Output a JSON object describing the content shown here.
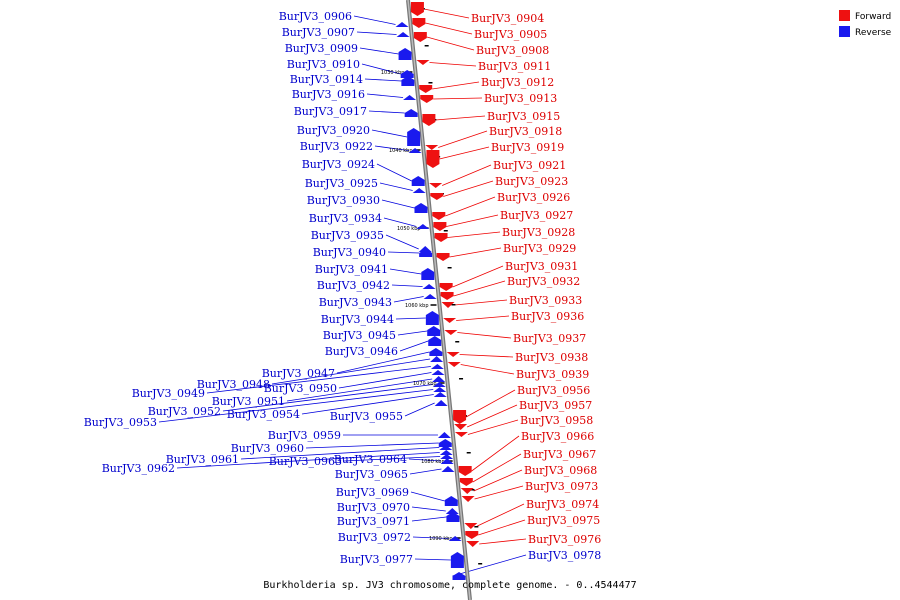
{
  "legend": {
    "forward": {
      "label": "Forward",
      "color": "#ee1111"
    },
    "reverse": {
      "label": "Reverse",
      "color": "#1a1aee"
    }
  },
  "caption": "Burkholderia sp. JV3 chromosome, complete genome. - 0..4544477",
  "ticks": [
    "1030 kbp",
    "1040 kbp",
    "1050 kbp",
    "1060 kbp",
    "1070 kbp",
    "1080 kbp",
    "1090 kbp"
  ],
  "forward_genes": [
    "BurJV3_0904",
    "BurJV3_0905",
    "BurJV3_0908",
    "BurJV3_0911",
    "BurJV3_0912",
    "BurJV3_0913",
    "BurJV3_0915",
    "BurJV3_0918",
    "BurJV3_0919",
    "BurJV3_0921",
    "BurJV3_0923",
    "BurJV3_0926",
    "BurJV3_0927",
    "BurJV3_0928",
    "BurJV3_0929",
    "BurJV3_0931",
    "BurJV3_0932",
    "BurJV3_0933",
    "BurJV3_0936",
    "BurJV3_0937",
    "BurJV3_0938",
    "BurJV3_0939",
    "BurJV3_0956",
    "BurJV3_0957",
    "BurJV3_0958",
    "BurJV3_0966",
    "BurJV3_0967",
    "BurJV3_0968",
    "BurJV3_0973",
    "BurJV3_0974",
    "BurJV3_0975",
    "BurJV3_0976"
  ],
  "reverse_genes": [
    "BurJV3_0906",
    "BurJV3_0907",
    "BurJV3_0909",
    "BurJV3_0910",
    "BurJV3_0914",
    "BurJV3_0916",
    "BurJV3_0917",
    "BurJV3_0920",
    "BurJV3_0922",
    "BurJV3_0924",
    "BurJV3_0925",
    "BurJV3_0930",
    "BurJV3_0934",
    "BurJV3_0935",
    "BurJV3_0940",
    "BurJV3_0941",
    "BurJV3_0942",
    "BurJV3_0943",
    "BurJV3_0944",
    "BurJV3_0945",
    "BurJV3_0946",
    "BurJV3_0947",
    "BurJV3_0948",
    "BurJV3_0949",
    "BurJV3_0950",
    "BurJV3_0951",
    "BurJV3_0952",
    "BurJV3_0953",
    "BurJV3_0954",
    "BurJV3_0955",
    "BurJV3_0959",
    "BurJV3_0960",
    "BurJV3_0961",
    "BurJV3_0962",
    "BurJV3_0963",
    "BurJV3_0964",
    "BurJV3_0965",
    "BurJV3_0969",
    "BurJV3_0970",
    "BurJV3_0971",
    "BurJV3_0972",
    "BurJV3_0977",
    "BurJV3_0978"
  ]
}
